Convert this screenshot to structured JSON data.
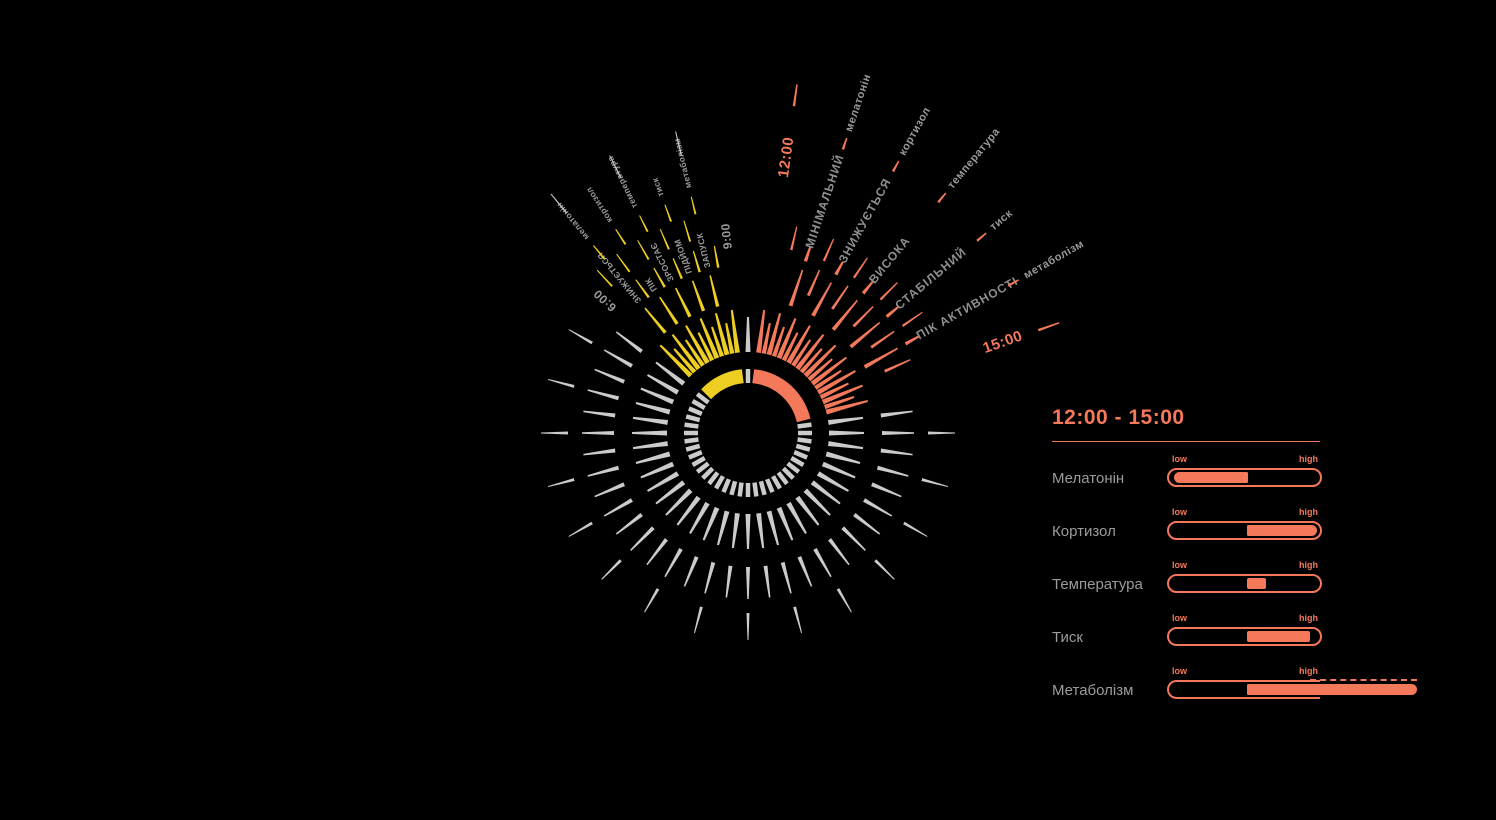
{
  "background": "#000000",
  "colors": {
    "accent_orange": "#F4795B",
    "accent_yellow": "#EFCE24",
    "tick_gray": "#CBCBCB",
    "text_gray": "#9A9A9A",
    "descriptor_gray": "#8F8F8F"
  },
  "chart_data": {
    "type": "radial-clock",
    "description": "24h circadian wheel of tick rings; selected sector 12:00-15:00 highlighted orange, morning sector 6:00-9:00 highlighted yellow; labeled rays name body parameters",
    "selected_sector": {
      "start_label": "12:00",
      "end_label": "15:00",
      "color": "#F4795B",
      "rays": [
        {
          "descriptor": "МІНІМАЛЬНИЙ",
          "parameter": "мелатонін"
        },
        {
          "descriptor": "ЗНИЖУЄТЬСЯ",
          "parameter": "кортизол"
        },
        {
          "descriptor": "ВИСОКА",
          "parameter": "температура"
        },
        {
          "descriptor": "СТАБІЛЬНИЙ",
          "parameter": "тиск"
        },
        {
          "descriptor": "ПІК АКТИВНОСТІ",
          "parameter": "метаболізм"
        }
      ]
    },
    "morning_sector": {
      "start_label": "6:00",
      "end_label": "9:00",
      "color": "#EFCE24",
      "rays": [
        {
          "descriptor": "ЗНИЖУЄТЬСЯ",
          "parameter": "мелатонін"
        },
        {
          "descriptor": "ПІК",
          "parameter": "кортизол"
        },
        {
          "descriptor": "ЗРОСТАЄ",
          "parameter": "температура"
        },
        {
          "descriptor": "ПІДЙОМ",
          "parameter": "тиск"
        },
        {
          "descriptor": "ЗАПУСК",
          "parameter": "метаболізм"
        }
      ]
    }
  },
  "panel": {
    "title": "12:00 - 15:00",
    "scale_low": "low",
    "scale_high": "high",
    "rows": [
      {
        "label": "Мелатонін",
        "fill_start": 0.02,
        "fill_end": 0.52,
        "overflow": false
      },
      {
        "label": "Кортизол",
        "fill_start": 0.5,
        "fill_end": 0.98,
        "overflow": false
      },
      {
        "label": "Температура",
        "fill_start": 0.5,
        "fill_end": 0.64,
        "overflow": false
      },
      {
        "label": "Тиск",
        "fill_start": 0.5,
        "fill_end": 0.93,
        "overflow": false
      },
      {
        "label": "Метаболізм",
        "fill_start": 0.5,
        "fill_end": 1.64,
        "overflow": true
      }
    ]
  }
}
